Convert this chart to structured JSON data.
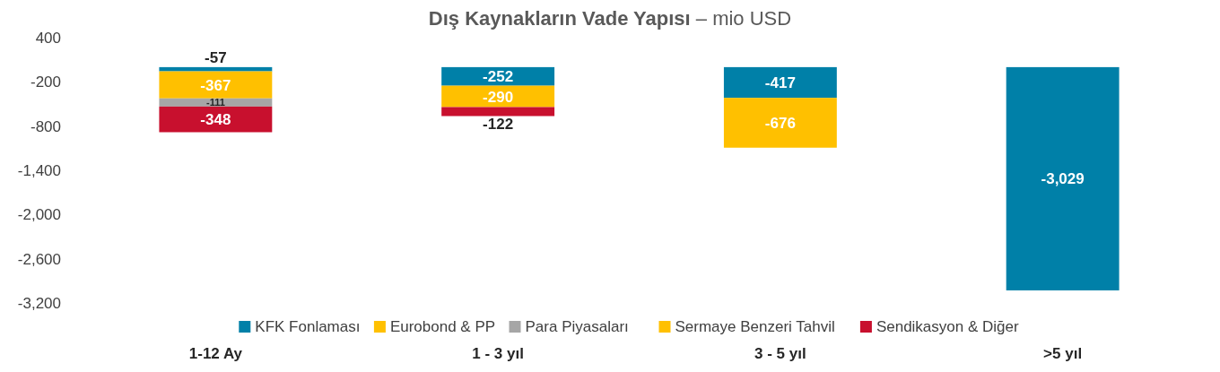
{
  "chart_data": {
    "type": "bar",
    "title": "Dış Kaynakların Vade Yapısı",
    "subtitle": "– mio USD",
    "categories": [
      "1-12 Ay",
      "1 - 3 yıl",
      "3 - 5 yıl",
      ">5 yıl"
    ],
    "stacked": true,
    "legend": "bottom",
    "grid": false,
    "ylim": [
      -3200,
      400
    ],
    "yticks": [
      {
        "value": 400,
        "label": "400"
      },
      {
        "value": -200,
        "label": "-200"
      },
      {
        "value": -800,
        "label": "-800"
      },
      {
        "value": -1400,
        "label": "-1,400"
      },
      {
        "value": -2000,
        "label": "-2,000"
      },
      {
        "value": -2600,
        "label": "-2,600"
      },
      {
        "value": -3200,
        "label": "-3,200"
      }
    ],
    "series": [
      {
        "name": "KFK Fonlaması",
        "color": "#0080a8",
        "values": [
          -57,
          -252,
          -417,
          -3029
        ],
        "value_labels": [
          "-57",
          "-252",
          "-417",
          "-3,029"
        ]
      },
      {
        "name": "Eurobond & PP",
        "color": "#ffc000",
        "values": [
          -367,
          -290,
          -676,
          null
        ],
        "value_labels": [
          "-367",
          "-290",
          "-676",
          null
        ]
      },
      {
        "name": "Para Piyasaları",
        "color": "#a6a6a6",
        "values": [
          -111,
          null,
          null,
          null
        ],
        "value_labels": [
          "-111",
          null,
          null,
          null
        ]
      },
      {
        "name": "Sermaye Benzeri Tahvil",
        "color": "#ffc000",
        "values": [
          null,
          null,
          null,
          null
        ]
      },
      {
        "name": "Sendikasyon & Diğer",
        "color": "#c8102e",
        "values": [
          -348,
          -122,
          null,
          null
        ],
        "value_labels": [
          "-348",
          "-122",
          null,
          null
        ]
      }
    ]
  }
}
